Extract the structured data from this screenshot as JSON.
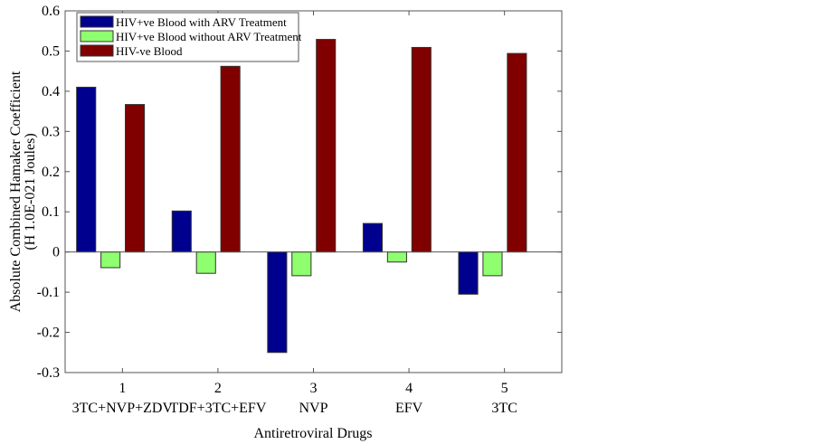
{
  "chart_data": {
    "type": "bar",
    "title": "",
    "xlabel": "Antiretroviral Drugs",
    "ylabel": "Absolute Combined Hamaker Coefficient",
    "ylabel_line2": "(H 1.0E-021 Joules)",
    "ylim": [
      -0.3,
      0.6
    ],
    "yticks": [
      -0.3,
      -0.2,
      -0.1,
      0,
      0.1,
      0.2,
      0.3,
      0.4,
      0.5,
      0.6
    ],
    "ytick_labels": [
      "-0.3",
      "-0.2",
      "-0.1",
      "0",
      "0.1",
      "0.2",
      "0.3",
      "0.4",
      "0.5",
      "0.6"
    ],
    "xlim": [
      0.4,
      5.6
    ],
    "categories": [
      "1",
      "2",
      "3",
      "4",
      "5"
    ],
    "category_names": [
      "3TC+NVP+ZDV",
      "TDF+3TC+EFV",
      "NVP",
      "EFV",
      "3TC"
    ],
    "grid": false,
    "legend_position": "top-left",
    "series": [
      {
        "name": "HIV+ve Blood with ARV Treatment",
        "color": "#00008f",
        "values": [
          0.41,
          0.102,
          -0.25,
          0.071,
          -0.105
        ]
      },
      {
        "name": "HIV+ve Blood without ARV Treatment",
        "color": "#8fff6f",
        "values": [
          -0.039,
          -0.053,
          -0.059,
          -0.025,
          -0.059
        ]
      },
      {
        "name": "HIV-ve Blood",
        "color": "#800000",
        "values": [
          0.367,
          0.462,
          0.529,
          0.509,
          0.494
        ]
      }
    ]
  }
}
